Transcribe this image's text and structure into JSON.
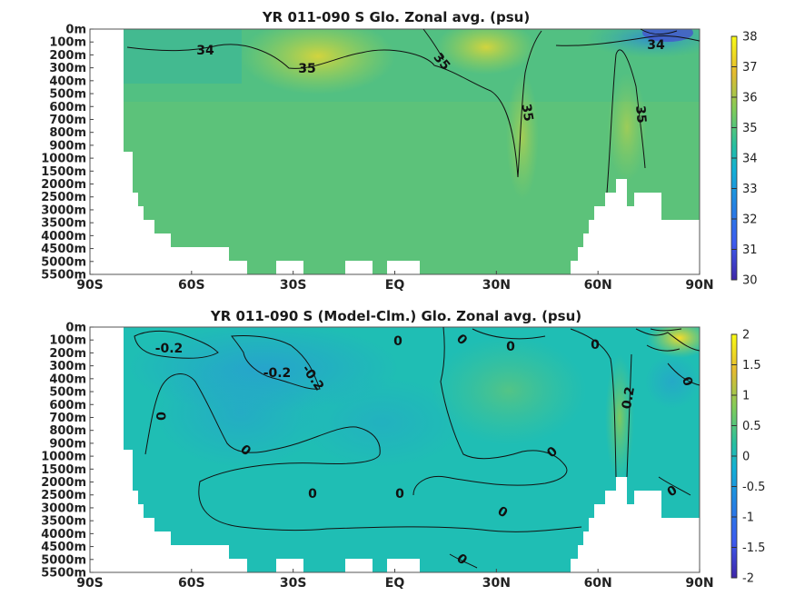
{
  "chart_data": [
    {
      "type": "heatmap",
      "title": "YR 011-090 S Glo. Zonal avg. (psu)",
      "x_ticks": [
        "90S",
        "60S",
        "30S",
        "EQ",
        "30N",
        "60N",
        "90N"
      ],
      "y_ticks": [
        "0m",
        "100m",
        "200m",
        "300m",
        "400m",
        "500m",
        "600m",
        "700m",
        "800m",
        "900m",
        "1000m",
        "1500m",
        "2000m",
        "2500m",
        "3000m",
        "3500m",
        "4000m",
        "4500m",
        "5000m",
        "5500m"
      ],
      "colorbar": {
        "min": 30,
        "max": 38,
        "ticks": [
          "30",
          "31",
          "32",
          "33",
          "34",
          "35",
          "36",
          "37",
          "38"
        ]
      },
      "contour_labels": [
        "34",
        "35",
        "35",
        "35",
        "35",
        "34"
      ],
      "colors": {
        "base": "#5cc27a",
        "high": "#b9d548",
        "low": "#1f8fd0",
        "deep": "#4a3fc7"
      }
    },
    {
      "type": "heatmap",
      "title": "YR 011-090 S (Model-Clm.) Glo. Zonal avg. (psu)",
      "x_ticks": [
        "90S",
        "60S",
        "30S",
        "EQ",
        "30N",
        "60N",
        "90N"
      ],
      "y_ticks": [
        "0m",
        "100m",
        "200m",
        "300m",
        "400m",
        "500m",
        "600m",
        "700m",
        "800m",
        "900m",
        "1000m",
        "1500m",
        "2000m",
        "2500m",
        "3000m",
        "3500m",
        "4000m",
        "4500m",
        "5000m",
        "5500m"
      ],
      "colorbar": {
        "min": -2,
        "max": 2,
        "ticks": [
          "-2",
          "-1.5",
          "-1",
          "-0.5",
          "0",
          "0.5",
          "1",
          "1.5",
          "2"
        ]
      },
      "contour_labels": [
        "-0.2",
        "-0.2",
        "-0.2",
        "0",
        "0",
        "0",
        "0",
        "0",
        "0",
        "0",
        "0.2",
        "0",
        "0",
        "0",
        "0",
        "0"
      ],
      "colors": {
        "base": "#1fbeb4",
        "negative": "#25a3c8",
        "positive": "#7cc860"
      }
    }
  ]
}
